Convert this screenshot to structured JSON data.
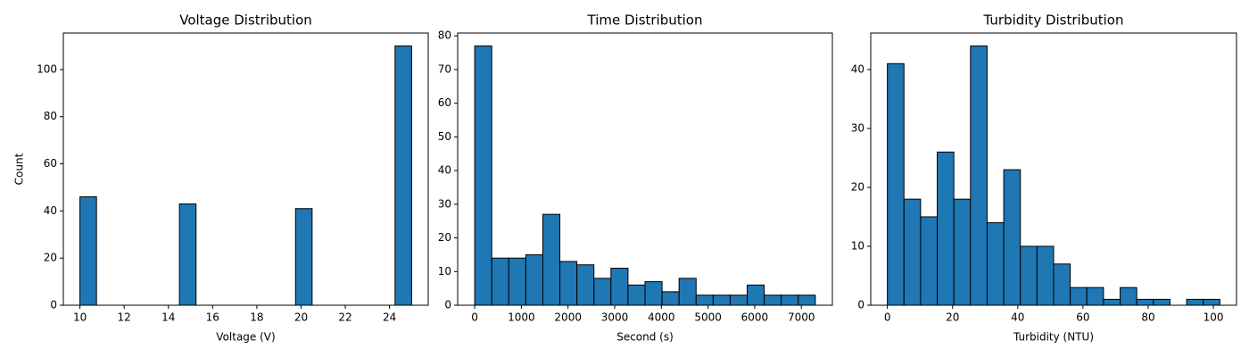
{
  "chart_data": [
    {
      "type": "histogram",
      "title": "Voltage Distribution",
      "xlabel": "Voltage (V)",
      "ylabel": "Count",
      "color": "#1f77b4",
      "bins": [
        10,
        10.75,
        11.5,
        12.25,
        13,
        13.75,
        14.5,
        15.25,
        16,
        16.75,
        17.5,
        18.25,
        19,
        19.75,
        20.5,
        21.25,
        22,
        22.75,
        23.5,
        24.25,
        25
      ],
      "counts": [
        46,
        0,
        0,
        0,
        0,
        0,
        43,
        0,
        0,
        0,
        0,
        0,
        0,
        41,
        0,
        0,
        0,
        0,
        0,
        110
      ],
      "xlim": [
        9.25,
        25.75
      ],
      "ylim": [
        0,
        115.5
      ],
      "xticks": [
        10,
        12,
        14,
        16,
        18,
        20,
        22,
        24
      ],
      "yticks": [
        0,
        20,
        40,
        60,
        80,
        100
      ]
    },
    {
      "type": "histogram",
      "title": "Time Distribution",
      "xlabel": "Second (s)",
      "color": "#1f77b4",
      "bins": [
        0,
        365,
        730,
        1095,
        1460,
        1825,
        2190,
        2555,
        2920,
        3285,
        3650,
        4015,
        4380,
        4745,
        5110,
        5475,
        5840,
        6205,
        6570,
        6935,
        7300
      ],
      "counts": [
        77,
        14,
        14,
        15,
        27,
        13,
        12,
        8,
        11,
        6,
        7,
        4,
        8,
        3,
        3,
        3,
        6,
        3,
        3,
        3
      ],
      "xlim": [
        -365,
        7665
      ],
      "ylim": [
        0,
        80.85
      ],
      "xticks": [
        0,
        1000,
        2000,
        3000,
        4000,
        5000,
        6000,
        7000
      ],
      "yticks": [
        0,
        10,
        20,
        30,
        40,
        50,
        60,
        70,
        80
      ]
    },
    {
      "type": "histogram",
      "title": "Turbidity Distribution",
      "xlabel": "Turbidity (NTU)",
      "color": "#1f77b4",
      "bins": [
        0,
        5.1,
        10.2,
        15.3,
        20.4,
        25.5,
        30.6,
        35.7,
        40.8,
        45.9,
        51,
        56.1,
        61.2,
        66.3,
        71.4,
        76.5,
        81.6,
        86.7,
        91.8,
        96.9,
        102
      ],
      "counts": [
        41,
        18,
        15,
        26,
        18,
        44,
        14,
        23,
        10,
        10,
        7,
        3,
        3,
        1,
        3,
        1,
        1,
        0,
        1,
        1
      ],
      "xlim": [
        -5.1,
        107.1
      ],
      "ylim": [
        0,
        46.2
      ],
      "xticks": [
        0,
        20,
        40,
        60,
        80,
        100
      ],
      "yticks": [
        0,
        10,
        20,
        30,
        40
      ]
    }
  ]
}
